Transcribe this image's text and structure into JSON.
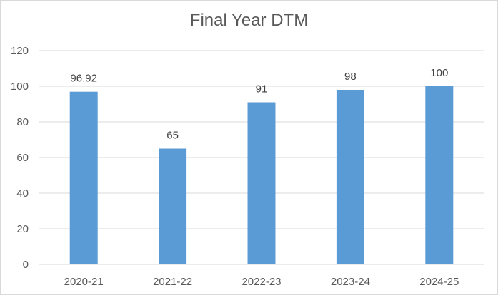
{
  "chart_data": {
    "type": "bar",
    "title": "Final Year DTM",
    "xlabel": "",
    "ylabel": "",
    "categories": [
      "2020-21",
      "2021-22",
      "2022-23",
      "2023-24",
      "2024-25"
    ],
    "values": [
      96.92,
      65,
      91,
      98,
      100
    ],
    "data_labels": [
      "96.92",
      "65",
      "91",
      "98",
      "100"
    ],
    "ylim": [
      0,
      120
    ],
    "y_ticks": [
      0,
      20,
      40,
      60,
      80,
      100,
      120
    ],
    "grid": true,
    "legend": "none",
    "colors": {
      "bar": "#5b9bd5",
      "grid": "#d9d9d9",
      "axis": "#d9d9d9",
      "text": "#595959"
    }
  }
}
